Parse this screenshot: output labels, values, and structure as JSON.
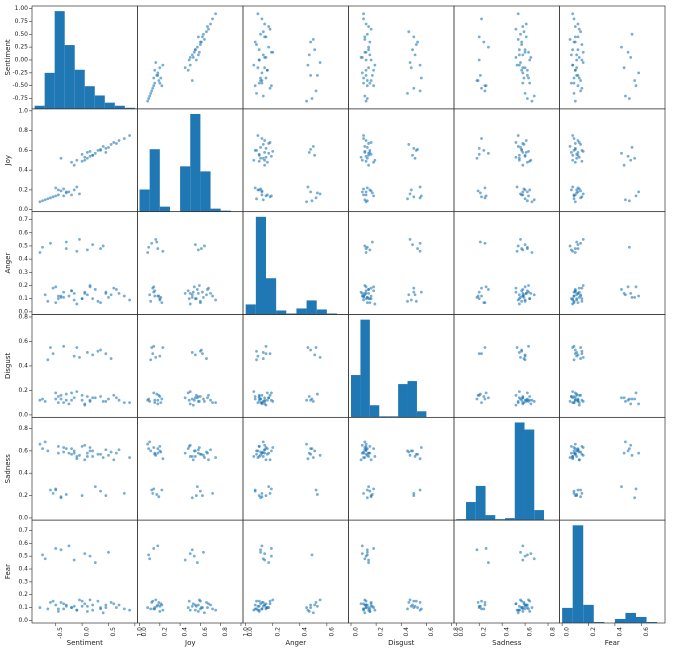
{
  "chart_data": {
    "type": "scatter_matrix",
    "color": "#1f77b4",
    "variables": [
      {
        "name": "Sentiment",
        "lim": [
          -0.95,
          1.05
        ],
        "yticks": [
          -0.75,
          {
            "value": -0.5,
            "label": "-0.50"
          },
          -0.25,
          {
            "value": 0,
            "label": "0.00"
          },
          0.25,
          {
            "value": 0.5,
            "label": "0.50"
          },
          0.75,
          {
            "value": 1,
            "label": "1.00"
          }
        ],
        "xticks": [
          {
            "value": -0.5,
            "label": "-0.5"
          },
          {
            "value": 0,
            "label": "0.0"
          },
          0.5,
          {
            "value": 1,
            "label": "1.0"
          }
        ],
        "hist": {
          "bins": [
            -0.9,
            -0.71,
            -0.52,
            -0.33,
            -0.14,
            0.05,
            0.24,
            0.43,
            0.62,
            0.81,
            1.0
          ],
          "counts": [
            3,
            35,
            95,
            62,
            38,
            22,
            13,
            6,
            3,
            1
          ]
        }
      },
      {
        "name": "Joy",
        "lim": [
          -0.02,
          1.02
        ],
        "yticks": [
          {
            "value": 0,
            "label": "0.0"
          },
          0.2,
          0.4,
          0.6,
          0.8,
          {
            "value": 1,
            "label": "1.0"
          }
        ],
        "xticks": [
          {
            "value": 0,
            "label": "0.0"
          },
          0.2,
          0.4,
          0.6,
          0.8,
          {
            "value": 1,
            "label": "1.0"
          }
        ],
        "hist": {
          "bins": [
            0,
            0.1,
            0.2,
            0.3,
            0.4,
            0.5,
            0.6,
            0.7,
            0.8,
            0.9,
            1.0
          ],
          "counts": [
            22,
            62,
            5,
            0,
            45,
            97,
            40,
            3,
            1,
            0
          ]
        }
      },
      {
        "name": "Anger",
        "lim": [
          -0.02,
          0.76
        ],
        "yticks": [
          {
            "value": 0,
            "label": "0.0"
          },
          0.1,
          0.2,
          0.3,
          0.4,
          0.5,
          0.6,
          0.7
        ],
        "xticks": [
          {
            "value": 0,
            "label": "0.0"
          },
          0.2,
          0.4,
          0.6
        ],
        "hist": {
          "bins": [
            0,
            0.075,
            0.15,
            0.225,
            0.3,
            0.375,
            0.45,
            0.525,
            0.6,
            0.675,
            0.75
          ],
          "counts": [
            10,
            97,
            36,
            4,
            1,
            6,
            14,
            5,
            1,
            0
          ]
        }
      },
      {
        "name": "Disgust",
        "lim": [
          -0.02,
          0.82
        ],
        "yticks": [
          {
            "value": 0,
            "label": "0.0"
          },
          0.2,
          0.4,
          0.6,
          0.8
        ],
        "xticks": [
          {
            "value": 0,
            "label": "0.0"
          },
          0.2,
          0.4,
          0.6,
          0.8
        ],
        "hist": {
          "bins": [
            0,
            0.075,
            0.15,
            0.225,
            0.3,
            0.375,
            0.45,
            0.525,
            0.6,
            0.675,
            0.75
          ],
          "counts": [
            42,
            97,
            12,
            1,
            1,
            33,
            36,
            6,
            0,
            0
          ]
        }
      },
      {
        "name": "Sadness",
        "lim": [
          -0.02,
          0.9
        ],
        "yticks": [
          {
            "value": 0,
            "label": "0.0"
          },
          0.2,
          0.4,
          0.6,
          0.8
        ],
        "xticks": [
          {
            "value": 0,
            "label": "0.0"
          },
          0.2,
          0.4,
          0.6,
          0.8
        ],
        "hist": {
          "bins": [
            0,
            0.085,
            0.17,
            0.255,
            0.34,
            0.425,
            0.51,
            0.595,
            0.68,
            0.765,
            0.85
          ],
          "counts": [
            1,
            18,
            34,
            5,
            1,
            2,
            97,
            90,
            10,
            0
          ]
        }
      },
      {
        "name": "Fear",
        "lim": [
          -0.02,
          0.78
        ],
        "yticks": [
          {
            "value": 0,
            "label": "0.0"
          },
          0.1,
          0.2,
          0.3,
          0.4,
          0.5,
          0.6,
          0.7
        ],
        "xticks": [
          {
            "value": 0,
            "label": "0.0"
          },
          0.2,
          0.4,
          0.6
        ],
        "hist": {
          "bins": [
            0,
            0.08,
            0.16,
            0.24,
            0.32,
            0.4,
            0.48,
            0.56,
            0.64,
            0.72,
            0.8
          ],
          "counts": [
            15,
            97,
            18,
            1,
            0,
            4,
            10,
            6,
            1,
            0
          ]
        }
      }
    ],
    "records": [
      [
        -0.45,
        0.15,
        0.12,
        0.1,
        0.58,
        0.09
      ],
      [
        -0.3,
        0.18,
        0.48,
        0.12,
        0.62,
        0.12
      ],
      [
        0.2,
        0.55,
        0.1,
        0.14,
        0.55,
        0.08
      ],
      [
        0.45,
        0.62,
        0.15,
        0.5,
        0.2,
        0.1
      ],
      [
        -0.6,
        0.12,
        0.52,
        0.55,
        0.25,
        0.14
      ],
      [
        0.05,
        0.5,
        0.14,
        0.09,
        0.65,
        0.52
      ],
      [
        -0.15,
        0.2,
        0.09,
        0.48,
        0.6,
        0.11
      ],
      [
        0.6,
        0.68,
        0.18,
        0.16,
        0.52,
        0.13
      ],
      [
        -0.4,
        0.52,
        0.11,
        0.13,
        0.18,
        0.55
      ],
      [
        0.1,
        0.58,
        0.47,
        0.15,
        0.58,
        0.07
      ],
      [
        -0.7,
        0.1,
        0.13,
        0.11,
        0.68,
        0.48
      ],
      [
        0.3,
        0.6,
        0.08,
        0.52,
        0.57,
        0.15
      ],
      [
        -0.2,
        0.48,
        0.16,
        0.18,
        0.62,
        0.1
      ],
      [
        0.8,
        0.72,
        0.12,
        0.1,
        0.22,
        0.09
      ],
      [
        -0.05,
        0.16,
        0.55,
        0.47,
        0.56,
        0.16
      ],
      [
        0.15,
        0.54,
        0.19,
        0.12,
        0.6,
        0.5
      ],
      [
        -0.5,
        0.22,
        0.07,
        0.13,
        0.25,
        0.12
      ],
      [
        0.4,
        0.64,
        0.5,
        0.11,
        0.54,
        0.06
      ],
      [
        -0.35,
        0.14,
        0.15,
        0.56,
        0.63,
        0.09
      ],
      [
        0.0,
        0.56,
        0.1,
        0.16,
        0.2,
        0.11
      ],
      [
        -0.25,
        0.18,
        0.12,
        0.09,
        0.58,
        0.58
      ],
      [
        0.55,
        0.66,
        0.13,
        0.46,
        0.59,
        0.14
      ],
      [
        -0.8,
        0.08,
        0.45,
        0.12,
        0.66,
        0.1
      ],
      [
        0.25,
        0.57,
        0.17,
        0.14,
        0.28,
        0.45
      ],
      [
        -0.1,
        0.5,
        0.06,
        0.19,
        0.55,
        0.08
      ],
      [
        0.7,
        0.7,
        0.14,
        0.12,
        0.61,
        0.12
      ],
      [
        -0.55,
        0.13,
        0.18,
        0.5,
        0.22,
        0.15
      ],
      [
        0.35,
        0.61,
        0.48,
        0.53,
        0.57,
        0.1
      ],
      [
        -0.45,
        0.2,
        0.1,
        0.15,
        0.64,
        0.07
      ],
      [
        0.05,
        0.53,
        0.15,
        0.08,
        0.52,
        0.13
      ],
      [
        -0.3,
        0.17,
        0.53,
        0.17,
        0.21,
        0.11
      ],
      [
        0.5,
        0.63,
        0.11,
        0.13,
        0.56,
        0.53
      ],
      [
        -0.65,
        0.11,
        0.08,
        0.45,
        0.6,
        0.09
      ],
      [
        0.15,
        0.59,
        0.2,
        0.11,
        0.63,
        0.16
      ],
      [
        -0.15,
        0.45,
        0.14,
        0.14,
        0.58,
        0.47
      ],
      [
        0.9,
        0.75,
        0.09,
        0.1,
        0.54,
        0.08
      ],
      [
        -0.4,
        0.19,
        0.12,
        0.16,
        0.19,
        0.14
      ],
      [
        0.2,
        0.55,
        0.51,
        0.49,
        0.6,
        0.12
      ],
      [
        -0.2,
        0.15,
        0.16,
        0.12,
        0.57,
        0.1
      ],
      [
        0.35,
        0.6,
        0.07,
        0.15,
        0.24,
        0.09
      ],
      [
        -0.75,
        0.09,
        0.49,
        0.13,
        0.62,
        0.51
      ],
      [
        0.1,
        0.52,
        0.13,
        0.51,
        0.55,
        0.11
      ],
      [
        -0.35,
        0.21,
        0.11,
        0.1,
        0.59,
        0.13
      ],
      [
        0.65,
        0.67,
        0.17,
        0.14,
        0.58,
        0.1
      ],
      [
        -0.5,
        0.14,
        0.19,
        0.18,
        0.26,
        0.56
      ],
      [
        0.0,
        0.49,
        0.1,
        0.12,
        0.64,
        0.15
      ],
      [
        -0.1,
        0.23,
        0.46,
        0.55,
        0.53,
        0.08
      ],
      [
        0.45,
        0.58,
        0.14,
        0.11,
        0.61,
        0.12
      ]
    ]
  }
}
